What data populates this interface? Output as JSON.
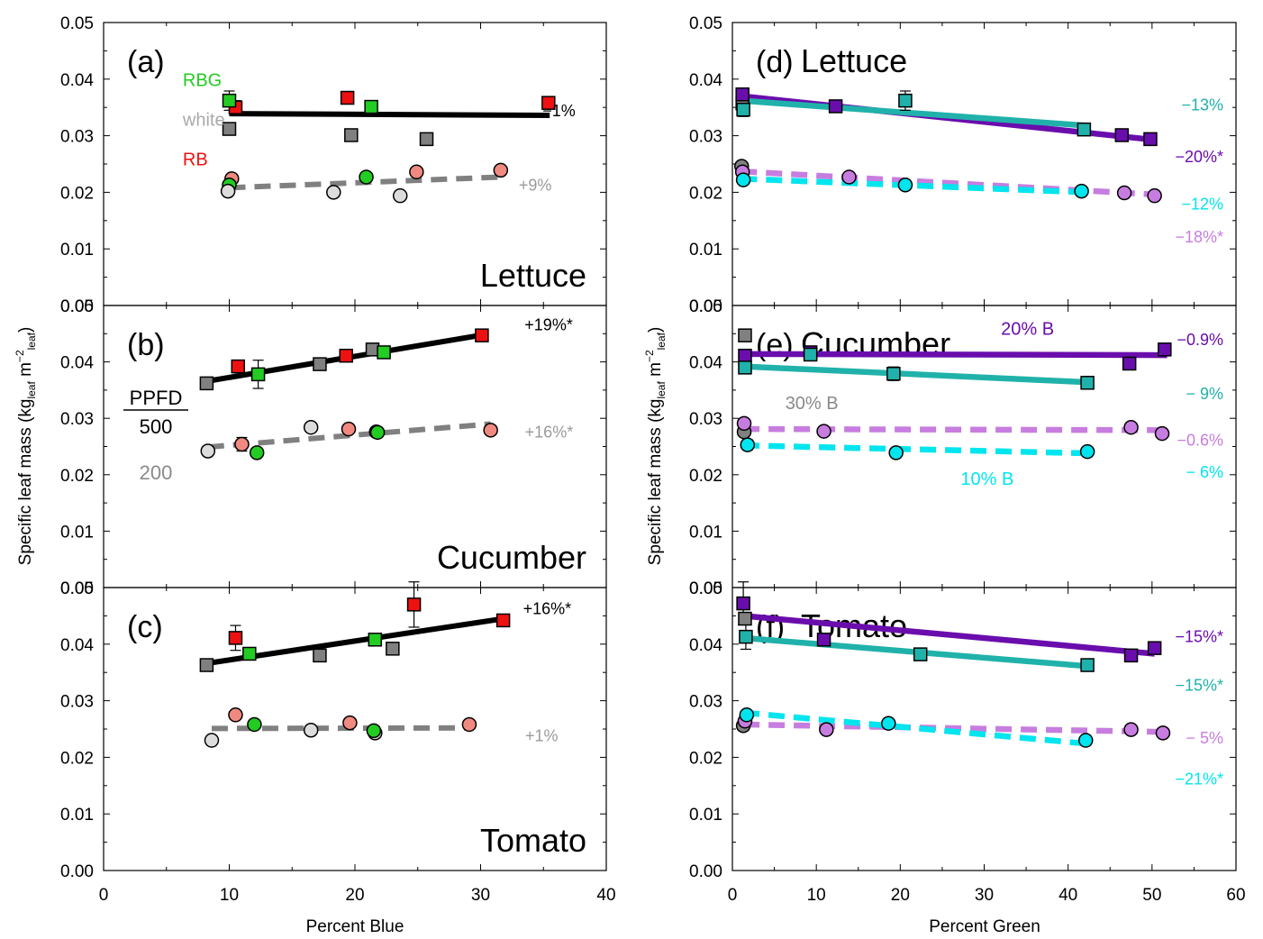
{
  "figure": {
    "left_xlabel": "Percent Blue",
    "right_xlabel": "Percent Green",
    "ylabel_main": "Specific leaf mass (kg",
    "ylabel_sub1": "leaf",
    "ylabel_mid": " m",
    "ylabel_sup": "−2",
    "ylabel_sub2": "leaf",
    "ylabel_end": ")"
  },
  "colors": {
    "red": "#ee1111",
    "green": "#22cc22",
    "gray": "#808080",
    "pink": "#f08a80",
    "lightgray": "#dcdcdc",
    "purple": "#6a0dad",
    "teal": "#20b2aa",
    "cyan": "#00e5ee",
    "violet": "#c77ddf"
  },
  "chart_data": [
    {
      "id": "a",
      "type": "scatter",
      "panel_label": "(a)",
      "crop_label": "Lettuce",
      "xlabel": "Percent Blue",
      "xlim": [
        0,
        40
      ],
      "ylim": [
        0,
        0.05
      ],
      "series": [
        {
          "name": "RB 500",
          "marker": "square",
          "color": "red",
          "x": [
            10.5,
            19.4,
            35.4
          ],
          "y": [
            0.035,
            0.0367,
            0.0358
          ]
        },
        {
          "name": "RBG 500",
          "marker": "square",
          "color": "green",
          "x": [
            10,
            21.3
          ],
          "y": [
            0.0362,
            0.0351
          ]
        },
        {
          "name": "white 500",
          "marker": "square",
          "color": "gray",
          "x": [
            10,
            19.7,
            25.7
          ],
          "y": [
            0.0312,
            0.0301,
            0.0294
          ]
        },
        {
          "name": "RB 200",
          "marker": "circle",
          "color": "pink",
          "x": [
            10.2,
            24.9,
            31.6
          ],
          "y": [
            0.0224,
            0.0236,
            0.0239
          ]
        },
        {
          "name": "RBG 200",
          "marker": "circle",
          "color": "green",
          "x": [
            10,
            20.9
          ],
          "y": [
            0.0213,
            0.0227
          ]
        },
        {
          "name": "white 200",
          "marker": "circle",
          "color": "lightgray",
          "x": [
            9.9,
            18.3,
            23.6
          ],
          "y": [
            0.0202,
            0.02,
            0.0194
          ]
        }
      ],
      "fits": [
        {
          "x": [
            10,
            35.5
          ],
          "y": [
            0.0339,
            0.0336
          ],
          "color": "black",
          "dash": false,
          "label": "−1%",
          "label_color": "black"
        },
        {
          "x": [
            10,
            31.6
          ],
          "y": [
            0.0208,
            0.0227
          ],
          "color": "gray",
          "dash": true,
          "label": "+9%",
          "label_color": "gray"
        }
      ],
      "error_bars": [
        [
          10,
          0.0362,
          0.0017
        ],
        [
          10.5,
          0.035,
          0.0012
        ]
      ],
      "notes": [
        {
          "text": "RBG",
          "color": "green",
          "x": 6.3,
          "y": 0.0388
        },
        {
          "text": "white",
          "color": "lightgray_text",
          "x": 6.3,
          "y": 0.0318
        },
        {
          "text": "RB",
          "color": "red",
          "x": 6.3,
          "y": 0.0248
        }
      ]
    },
    {
      "id": "b",
      "type": "scatter",
      "panel_label": "(b)",
      "crop_label": "Cucumber",
      "xlabel": "Percent Blue",
      "xlim": [
        0,
        40
      ],
      "ylim": [
        0,
        0.05
      ],
      "series": [
        {
          "name": "white 500",
          "marker": "square",
          "color": "gray",
          "x": [
            8.2,
            17.2,
            21.4
          ],
          "y": [
            0.0362,
            0.0396,
            0.0422
          ]
        },
        {
          "name": "RB 500",
          "marker": "square",
          "color": "red",
          "x": [
            10.7,
            19.3,
            30.1
          ],
          "y": [
            0.0392,
            0.0411,
            0.0447
          ]
        },
        {
          "name": "RBG 500",
          "marker": "square",
          "color": "green",
          "x": [
            12.3,
            22.3
          ],
          "y": [
            0.0378,
            0.0417
          ]
        },
        {
          "name": "white 200",
          "marker": "circle",
          "color": "lightgray",
          "x": [
            8.3,
            16.5,
            21.7
          ],
          "y": [
            0.0242,
            0.0284,
            0.0276
          ]
        },
        {
          "name": "RB 200",
          "marker": "circle",
          "color": "pink",
          "x": [
            11,
            19.5,
            30.8
          ],
          "y": [
            0.0254,
            0.0281,
            0.0279
          ]
        },
        {
          "name": "RBG 200",
          "marker": "circle",
          "color": "green",
          "x": [
            12.2,
            21.8
          ],
          "y": [
            0.0239,
            0.0275
          ]
        }
      ],
      "fits": [
        {
          "x": [
            8,
            30.2
          ],
          "y": [
            0.0365,
            0.0448
          ],
          "color": "black",
          "dash": false,
          "label": "+19%*",
          "label_color": "black"
        },
        {
          "x": [
            8.3,
            30.8
          ],
          "y": [
            0.0249,
            0.029
          ],
          "color": "gray",
          "dash": true,
          "label": "+16%*",
          "label_color": "gray"
        }
      ],
      "error_bars": [
        [
          12.3,
          0.0378,
          0.0025
        ],
        [
          10.7,
          0.0392,
          0.0008
        ],
        [
          22.3,
          0.0417,
          0.001
        ],
        [
          11,
          0.0254,
          0.0012
        ]
      ],
      "legend_block": {
        "title": "PPFD",
        "high": "500",
        "low": "200"
      }
    },
    {
      "id": "c",
      "type": "scatter",
      "panel_label": "(c)",
      "crop_label": "Tomato",
      "xlabel": "Percent Blue",
      "xlim": [
        0,
        40
      ],
      "ylim": [
        0,
        0.05
      ],
      "series": [
        {
          "name": "white 500",
          "marker": "square",
          "color": "gray",
          "x": [
            8.2,
            17.2,
            23
          ],
          "y": [
            0.0363,
            0.038,
            0.0392
          ]
        },
        {
          "name": "RB 500",
          "marker": "square",
          "color": "red",
          "x": [
            10.5,
            24.7,
            31.8
          ],
          "y": [
            0.0411,
            0.047,
            0.0442
          ]
        },
        {
          "name": "RBG 500",
          "marker": "square",
          "color": "green",
          "x": [
            11.6,
            21.6
          ],
          "y": [
            0.0383,
            0.0408
          ]
        },
        {
          "name": "white 200",
          "marker": "circle",
          "color": "lightgray",
          "x": [
            8.6,
            16.5,
            21.6
          ],
          "y": [
            0.023,
            0.0248,
            0.0243
          ]
        },
        {
          "name": "RB 200",
          "marker": "circle",
          "color": "pink",
          "x": [
            10.5,
            19.6,
            29.1
          ],
          "y": [
            0.0275,
            0.0261,
            0.0258
          ]
        },
        {
          "name": "RBG 200",
          "marker": "circle",
          "color": "green",
          "x": [
            12,
            21.5
          ],
          "y": [
            0.0258,
            0.0247
          ]
        }
      ],
      "fits": [
        {
          "x": [
            8.2,
            31.8
          ],
          "y": [
            0.0366,
            0.0445
          ],
          "color": "black",
          "dash": false,
          "label": "+16%*",
          "label_color": "black"
        },
        {
          "x": [
            8.6,
            29.1
          ],
          "y": [
            0.0251,
            0.0252
          ],
          "color": "gray",
          "dash": true,
          "label": "+1%",
          "label_color": "gray"
        }
      ],
      "error_bars": [
        [
          10.5,
          0.0411,
          0.0022
        ],
        [
          24.7,
          0.047,
          0.004
        ]
      ]
    },
    {
      "id": "d",
      "type": "scatter",
      "panel_label": "(d)",
      "crop_label": "Lettuce",
      "xlabel": "Percent Green",
      "xlim": [
        0,
        60
      ],
      "ylim": [
        0,
        0.05
      ],
      "series": [
        {
          "name": "white 500",
          "marker": "square",
          "color": "gray",
          "x": [
            1.2
          ],
          "y": [
            0.0357
          ]
        },
        {
          "name": "20% B 500",
          "marker": "square",
          "color": "purple",
          "x": [
            1.2,
            12.3,
            46.4,
            49.8
          ],
          "y": [
            0.0373,
            0.0352,
            0.0301,
            0.0294
          ]
        },
        {
          "name": "10% B 500",
          "marker": "square",
          "color": "teal",
          "x": [
            1.3,
            20.6,
            41.9
          ],
          "y": [
            0.0346,
            0.0362,
            0.0311
          ]
        },
        {
          "name": "white 200",
          "marker": "circle",
          "color": "gray",
          "x": [
            1.1
          ],
          "y": [
            0.0246
          ]
        },
        {
          "name": "20% B 200",
          "marker": "circle",
          "color": "violet",
          "x": [
            1.2,
            13.9,
            46.7,
            50.3
          ],
          "y": [
            0.0236,
            0.0227,
            0.0199,
            0.0194
          ]
        },
        {
          "name": "10% B 200",
          "marker": "circle",
          "color": "cyan",
          "x": [
            1.3,
            20.6,
            41.6
          ],
          "y": [
            0.0222,
            0.0213,
            0.0202
          ]
        }
      ],
      "fits": [
        {
          "x": [
            1,
            50
          ],
          "y": [
            0.037,
            0.0293
          ],
          "color": "purple",
          "dash": false,
          "label": "−20%*",
          "label_color": "purple"
        },
        {
          "x": [
            1,
            42
          ],
          "y": [
            0.0362,
            0.0318
          ],
          "color": "teal",
          "dash": false,
          "label": "−13%",
          "label_color": "teal"
        },
        {
          "x": [
            1,
            50.5
          ],
          "y": [
            0.0237,
            0.0196
          ],
          "color": "violet",
          "dash": true,
          "label": "−18%*",
          "label_color": "violet"
        },
        {
          "x": [
            1,
            42
          ],
          "y": [
            0.0224,
            0.02
          ],
          "color": "cyan",
          "dash": true,
          "label": "−12%",
          "label_color": "cyan"
        }
      ],
      "error_bars": [
        [
          20.6,
          0.0362,
          0.0017
        ],
        [
          1.3,
          0.0346,
          0.0012
        ]
      ]
    },
    {
      "id": "e",
      "type": "scatter",
      "panel_label": "(e)",
      "crop_label": "Cucumber",
      "xlabel": "Percent Green",
      "xlim": [
        0,
        60
      ],
      "ylim": [
        0,
        0.05
      ],
      "series": [
        {
          "name": "white 500",
          "marker": "square",
          "color": "gray",
          "x": [
            1.5
          ],
          "y": [
            0.0447
          ]
        },
        {
          "name": "20% B 500",
          "marker": "square",
          "color": "purple",
          "x": [
            1.5,
            9.3,
            47.3,
            51.5
          ],
          "y": [
            0.0411,
            0.0417,
            0.0397,
            0.0422
          ]
        },
        {
          "name": "10% B 500",
          "marker": "square",
          "color": "teal",
          "x": [
            1.5,
            9.3,
            19.2,
            42.3
          ],
          "y": [
            0.039,
            0.0413,
            0.0379,
            0.0363
          ]
        },
        {
          "name": "white 200",
          "marker": "circle",
          "color": "gray",
          "x": [
            1.4
          ],
          "y": [
            0.0276
          ]
        },
        {
          "name": "20% B 200",
          "marker": "circle",
          "color": "violet",
          "x": [
            1.4,
            10.9,
            47.5,
            51.2
          ],
          "y": [
            0.0291,
            0.0277,
            0.0284,
            0.0273
          ]
        },
        {
          "name": "10% B 200",
          "marker": "circle",
          "color": "cyan",
          "x": [
            1.8,
            19.5,
            42.3
          ],
          "y": [
            0.0253,
            0.0239,
            0.0241
          ]
        }
      ],
      "fits": [
        {
          "x": [
            1.3,
            51.8
          ],
          "y": [
            0.0414,
            0.0412
          ],
          "color": "purple",
          "dash": false,
          "label": "−0.9%",
          "label_color": "purple"
        },
        {
          "x": [
            1.3,
            42.3
          ],
          "y": [
            0.0392,
            0.0364
          ],
          "color": "teal",
          "dash": false,
          "label": "− 9%",
          "label_color": "teal"
        },
        {
          "x": [
            1.3,
            51.5
          ],
          "y": [
            0.0281,
            0.0279
          ],
          "color": "violet",
          "dash": true,
          "label": "−0.6%",
          "label_color": "violet"
        },
        {
          "x": [
            1.3,
            42.3
          ],
          "y": [
            0.0252,
            0.0238
          ],
          "color": "cyan",
          "dash": true,
          "label": "− 6%",
          "label_color": "cyan"
        }
      ],
      "error_bars": [
        [
          9.3,
          0.0417,
          0.001
        ],
        [
          19.2,
          0.0379,
          0.0012
        ],
        [
          1.8,
          0.0253,
          0.0009
        ]
      ],
      "notes": [
        {
          "text": "20% B",
          "color": "purple",
          "x": 32,
          "y": 0.0448
        },
        {
          "text": "30% B",
          "color": "gray",
          "x": 6.3,
          "y": 0.0316
        },
        {
          "text": "10% B",
          "color": "cyan",
          "x": 27.2,
          "y": 0.0182
        }
      ]
    },
    {
      "id": "f",
      "type": "scatter",
      "panel_label": "(f)",
      "crop_label": "Tomato",
      "xlabel": "Percent Green",
      "xlim": [
        0,
        60
      ],
      "ylim": [
        0,
        0.05
      ],
      "series": [
        {
          "name": "white 500",
          "marker": "square",
          "color": "gray",
          "x": [
            1.5
          ],
          "y": [
            0.0445
          ]
        },
        {
          "name": "20% B 500",
          "marker": "square",
          "color": "purple",
          "x": [
            1.3,
            10.9,
            47.5,
            50.3
          ],
          "y": [
            0.0472,
            0.0408,
            0.038,
            0.0393
          ]
        },
        {
          "name": "10% B 500",
          "marker": "square",
          "color": "teal",
          "x": [
            1.6,
            22.4,
            42.3
          ],
          "y": [
            0.0413,
            0.0382,
            0.0363
          ]
        },
        {
          "name": "white 200",
          "marker": "circle",
          "color": "gray",
          "x": [
            1.3
          ],
          "y": [
            0.0256
          ]
        },
        {
          "name": "20% B 200",
          "marker": "circle",
          "color": "violet",
          "x": [
            1.5,
            11.2,
            47.5,
            51.3
          ],
          "y": [
            0.0264,
            0.0249,
            0.0249,
            0.0243
          ]
        },
        {
          "name": "10% B 200",
          "marker": "circle",
          "color": "cyan",
          "x": [
            1.7,
            18.6,
            42.1
          ],
          "y": [
            0.0275,
            0.026,
            0.023
          ]
        }
      ],
      "fits": [
        {
          "x": [
            1.3,
            50.3
          ],
          "y": [
            0.045,
            0.0383
          ],
          "color": "purple",
          "dash": false,
          "label": "−15%*",
          "label_color": "purple"
        },
        {
          "x": [
            1.3,
            42.3
          ],
          "y": [
            0.0411,
            0.0361
          ],
          "color": "teal",
          "dash": false,
          "label": "−15%*",
          "label_color": "teal"
        },
        {
          "x": [
            1.3,
            51.3
          ],
          "y": [
            0.0258,
            0.0245
          ],
          "color": "violet",
          "dash": true,
          "label": "− 5%",
          "label_color": "violet"
        },
        {
          "x": [
            1.3,
            42.3
          ],
          "y": [
            0.0279,
            0.0224
          ],
          "color": "cyan",
          "dash": true,
          "label": "−21%*",
          "label_color": "cyan"
        }
      ],
      "error_bars": [
        [
          1.3,
          0.0472,
          0.0038
        ],
        [
          1.6,
          0.0413,
          0.0022
        ]
      ]
    }
  ]
}
